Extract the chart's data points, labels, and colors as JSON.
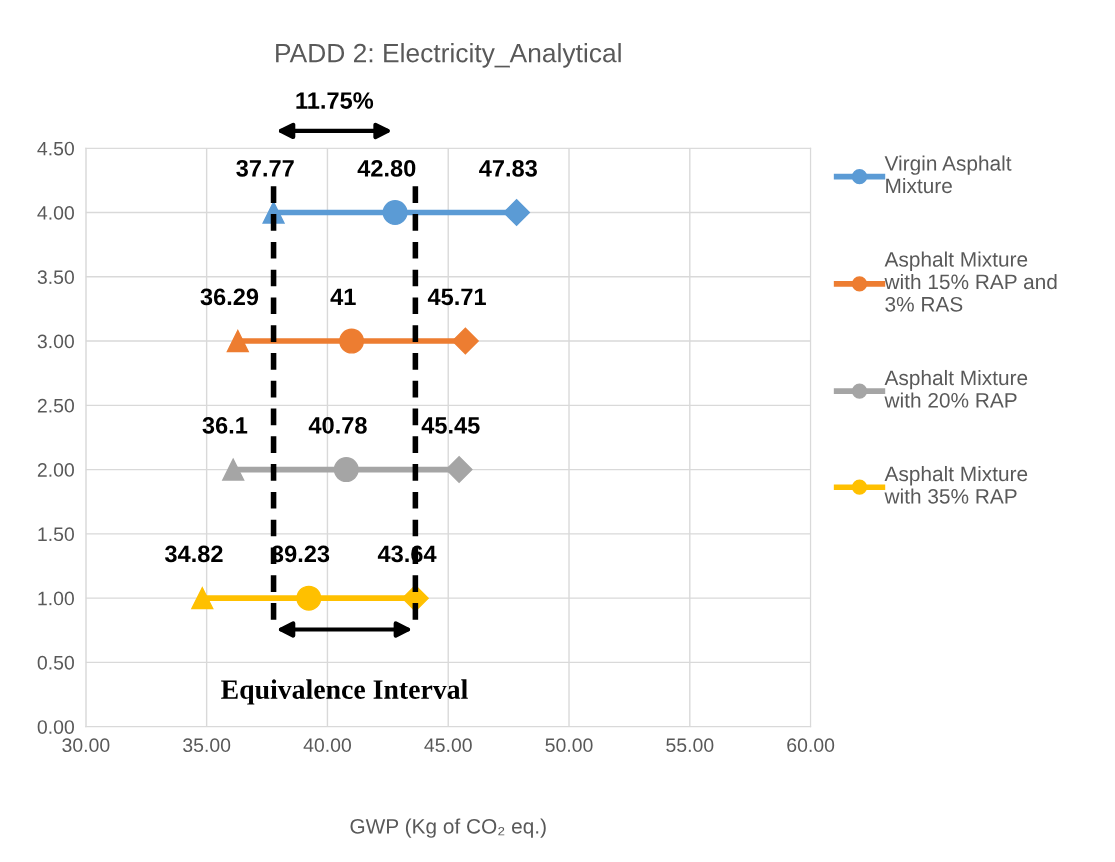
{
  "chart_data": {
    "type": "line",
    "orientation": "horizontal",
    "title": "PADD 2: Electricity_Analytical",
    "xlabel": "GWP (Kg of CO₂ eq.)",
    "xlim": [
      30,
      60
    ],
    "xticks": [
      {
        "value": 30,
        "label": "30.00"
      },
      {
        "value": 35,
        "label": "35.00"
      },
      {
        "value": 40,
        "label": "40.00"
      },
      {
        "value": 45,
        "label": "45.00"
      },
      {
        "value": 50,
        "label": "50.00"
      },
      {
        "value": 55,
        "label": "55.00"
      },
      {
        "value": 60,
        "label": "60.00"
      }
    ],
    "ylim": [
      0,
      4.5
    ],
    "yticks": [
      {
        "value": 0,
        "label": "0.00"
      },
      {
        "value": 0.5,
        "label": "0.50"
      },
      {
        "value": 1,
        "label": "1.00"
      },
      {
        "value": 1.5,
        "label": "1.50"
      },
      {
        "value": 2,
        "label": "2.00"
      },
      {
        "value": 2.5,
        "label": "2.50"
      },
      {
        "value": 3,
        "label": "3.00"
      },
      {
        "value": 3.5,
        "label": "3.50"
      },
      {
        "value": 4,
        "label": "4.00"
      },
      {
        "value": 4.5,
        "label": "4.50"
      }
    ],
    "grid": true,
    "legend": "right",
    "line_style": "solid",
    "series": [
      {
        "name": "Virgin Asphalt Mixture",
        "color": "#5b9bd5",
        "x": [
          4,
          4,
          4
        ],
        "values": [
          37.77,
          42.8,
          47.83
        ],
        "marker": [
          "triangle",
          "circle",
          "diamond"
        ],
        "value_labels": [
          "37.77",
          "42.80",
          "47.83"
        ]
      },
      {
        "name": "Asphalt Mixture with 15% RAP and 3% RAS",
        "color": "#ed7d31",
        "x": [
          3,
          3,
          3
        ],
        "values": [
          36.29,
          41,
          45.71
        ],
        "marker": [
          "triangle",
          "circle",
          "diamond"
        ],
        "value_labels": [
          "36.29",
          "41",
          "45.71"
        ]
      },
      {
        "name": "Asphalt Mixture with 20% RAP",
        "color": "#a5a5a5",
        "x": [
          2,
          2,
          2
        ],
        "values": [
          36.1,
          40.78,
          45.45
        ],
        "marker": [
          "triangle",
          "circle",
          "diamond"
        ],
        "value_labels": [
          "36.1",
          "40.78",
          "45.45"
        ]
      },
      {
        "name": "Asphalt Mixture with 35% RAP",
        "color": "#ffc000",
        "x": [
          1,
          1,
          1
        ],
        "values": [
          34.82,
          39.23,
          43.64
        ],
        "marker": [
          "triangle",
          "circle",
          "diamond"
        ],
        "value_labels": [
          "34.82",
          "39.23",
          "43.64"
        ]
      }
    ],
    "ref_lines": [
      {
        "axis": "x",
        "value": 37.77,
        "color": "#000000",
        "line_style": "dashed"
      },
      {
        "axis": "x",
        "value": 43.64,
        "color": "#000000",
        "line_style": "dashed"
      }
    ],
    "annotations": [
      "11.75%",
      "Equivalence Interval"
    ]
  }
}
